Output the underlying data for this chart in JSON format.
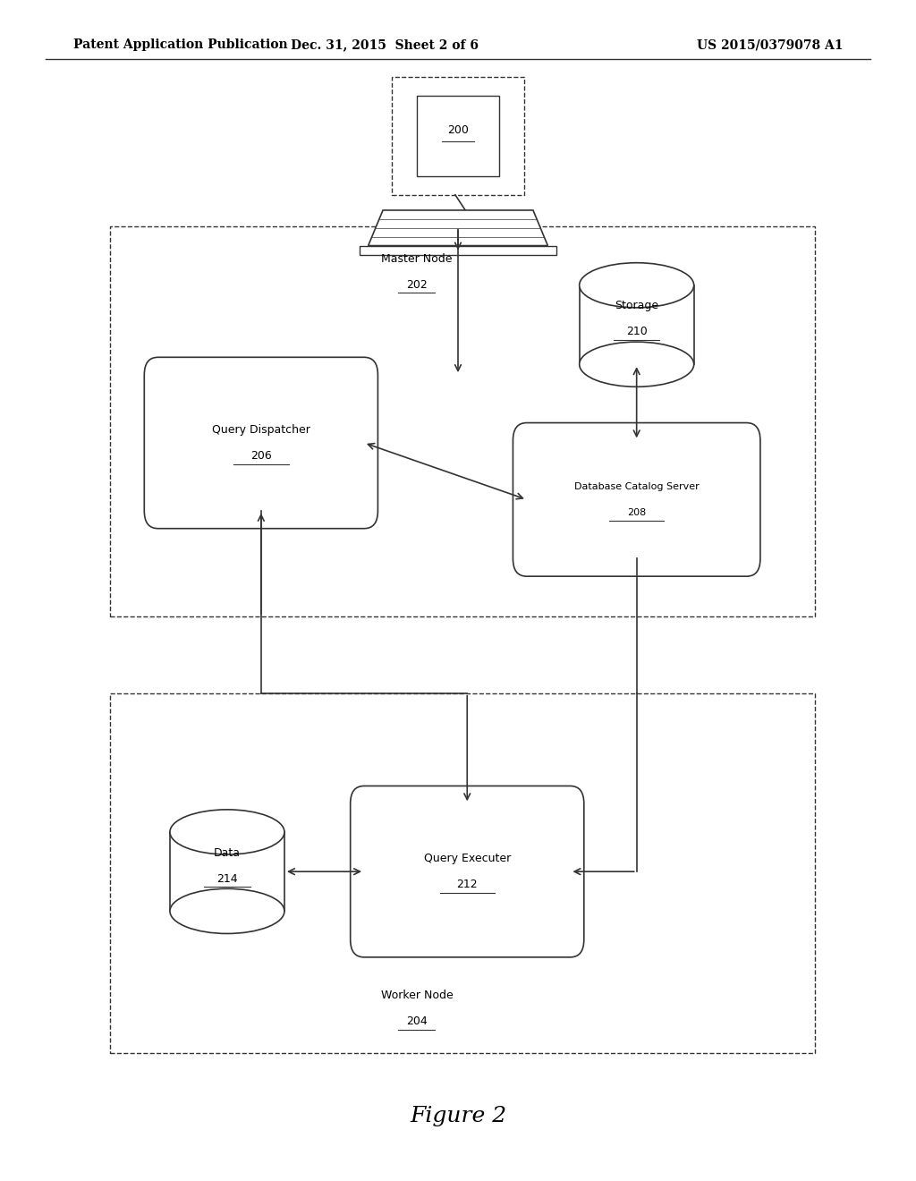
{
  "title_left": "Patent Application Publication",
  "title_mid": "Dec. 31, 2015  Sheet 2 of 6",
  "title_right": "US 2015/0379078 A1",
  "figure_label": "Figure 2",
  "bg_color": "#ffffff",
  "line_color": "#333333",
  "nodes": {
    "computer_label": "200",
    "query_dispatcher_line1": "Query Dispatcher",
    "query_dispatcher_line2": "206",
    "storage_line1": "Storage",
    "storage_line2": "210",
    "db_catalog_line1": "Database Catalog Server",
    "db_catalog_line2": "208",
    "query_executer_line1": "Query Executer",
    "query_executer_line2": "212",
    "data_line1": "Data",
    "data_line2": "214",
    "master_node_line1": "Master Node",
    "master_node_line2": "202",
    "worker_node_line1": "Worker Node",
    "worker_node_line2": "204"
  }
}
